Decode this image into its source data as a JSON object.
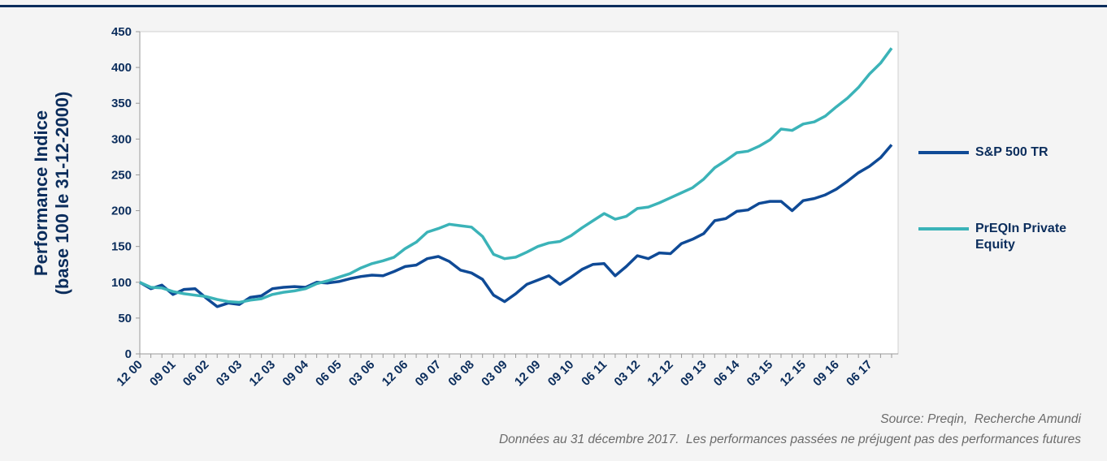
{
  "chart_data": {
    "type": "line",
    "y_label": [
      "Performance Indice",
      "(base 100 le 31-12-2000)"
    ],
    "categories": [
      "12 00",
      null,
      null,
      "09 01",
      null,
      null,
      "06 02",
      null,
      null,
      "03 03",
      null,
      null,
      "12 03",
      null,
      null,
      "09 04",
      null,
      null,
      "06 05",
      null,
      null,
      "03 06",
      null,
      null,
      "12 06",
      null,
      null,
      "09 07",
      null,
      null,
      "06 08",
      null,
      null,
      "03 09",
      null,
      null,
      "12 09",
      null,
      null,
      "09 10",
      null,
      null,
      "06 11",
      null,
      null,
      "03 12",
      null,
      null,
      "12 12",
      null,
      null,
      "09 13",
      null,
      null,
      "06 14",
      null,
      null,
      "03 15",
      null,
      null,
      "12 15",
      null,
      null,
      "09 16",
      null,
      null,
      "06 17",
      null,
      null
    ],
    "series": [
      {
        "name": "S&P 500 TR",
        "color": "#0f4a96",
        "values": [
          100,
          91,
          96,
          83,
          90,
          91,
          78,
          66,
          71,
          69,
          79,
          81,
          91,
          93,
          94,
          93,
          100,
          99,
          101,
          105,
          108,
          110,
          109,
          115,
          122,
          124,
          133,
          136,
          129,
          117,
          113,
          104,
          82,
          73,
          84,
          97,
          103,
          109,
          97,
          107,
          118,
          125,
          126,
          109,
          122,
          137,
          133,
          141,
          140,
          154,
          160,
          168,
          186,
          189,
          199,
          201,
          210,
          213,
          213,
          200,
          214,
          217,
          222,
          230,
          241,
          253,
          262,
          274,
          292
        ]
      },
      {
        "name": "PrEQIn Private Equity",
        "color": "#3bb3b8",
        "values": [
          100,
          93,
          92,
          87,
          84,
          82,
          80,
          76,
          73,
          72,
          75,
          77,
          83,
          86,
          88,
          91,
          98,
          102,
          107,
          112,
          120,
          126,
          130,
          135,
          147,
          156,
          170,
          175,
          181,
          179,
          177,
          164,
          139,
          133,
          135,
          142,
          150,
          155,
          157,
          165,
          176,
          186,
          196,
          188,
          192,
          203,
          205,
          211,
          218,
          225,
          232,
          244,
          260,
          270,
          281,
          283,
          290,
          299,
          314,
          312,
          321,
          324,
          332,
          345,
          357,
          372,
          391,
          406,
          427
        ]
      }
    ],
    "ylim": [
      0,
      450
    ],
    "yticks": [
      0,
      50,
      100,
      150,
      200,
      250,
      300,
      350,
      400,
      450
    ],
    "notes": [
      "Source: Preqin,  Recherche Amundi",
      "Données au 31 décembre 2017.  Les performances passées ne préjugent pas des performances futures"
    ]
  }
}
